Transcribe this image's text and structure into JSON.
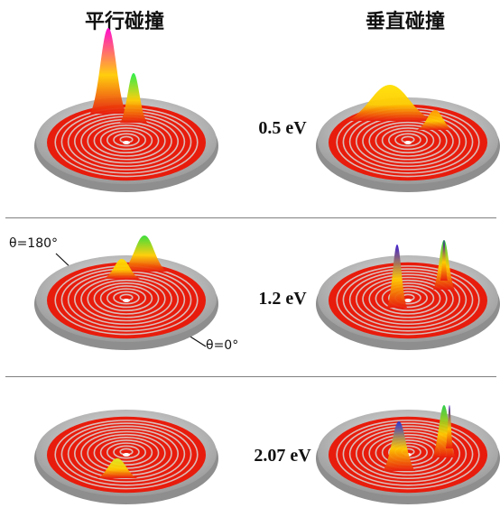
{
  "columns": {
    "parallel": "平行碰撞",
    "perpendicular": "垂直碰撞"
  },
  "energies": [
    "0.5 eV",
    "1.2 eV",
    "2.07 eV"
  ],
  "annotations": {
    "theta_180": "θ=180°",
    "theta_0": "θ=0°"
  },
  "colors": {
    "surface_base": "#e81c0c",
    "ring_light": "#d8d8d8",
    "plate": "#c9c9c9",
    "separator": "#808080"
  },
  "panels": [
    {
      "row": 1,
      "column": "parallel",
      "peaks": [
        {
          "color": "#ff00cc"
        },
        {
          "color": "#22ee44"
        }
      ]
    },
    {
      "row": 1,
      "column": "perpendicular",
      "peaks": [
        {
          "color": "#ffe000"
        },
        {
          "color": "#ff9900"
        }
      ]
    },
    {
      "row": 2,
      "column": "parallel",
      "peaks": [
        {
          "color": "#33dd33"
        },
        {
          "color": "#ffdd00"
        }
      ]
    },
    {
      "row": 2,
      "column": "perpendicular",
      "peaks": [
        {
          "color": "#3311cc"
        },
        {
          "color": "#22cc44"
        },
        {
          "color": "#2200aa"
        }
      ]
    },
    {
      "row": 3,
      "column": "parallel",
      "peaks": [
        {
          "color": "#ddee22"
        }
      ]
    },
    {
      "row": 3,
      "column": "perpendicular",
      "peaks": [
        {
          "color": "#2233dd"
        },
        {
          "color": "#22cc44"
        },
        {
          "color": "#2200aa"
        }
      ]
    }
  ]
}
